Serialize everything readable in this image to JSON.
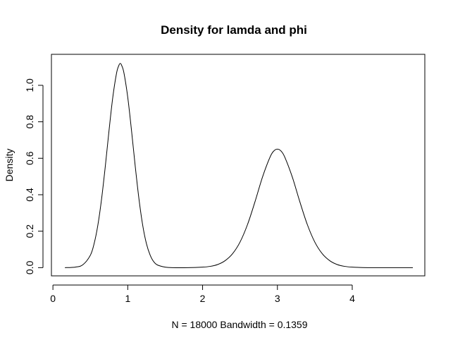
{
  "chart_data": {
    "type": "line",
    "title": "Density for lamda and phi",
    "xlabel": "N = 18000   Bandwidth = 0.1359",
    "ylabel": "Density",
    "xlim": [
      -0.02,
      4.97
    ],
    "ylim": [
      -0.045,
      1.17
    ],
    "xticks": [
      0,
      1,
      2,
      3,
      4
    ],
    "yticks": [
      0.0,
      0.2,
      0.4,
      0.6,
      0.8,
      1.0
    ],
    "ytick_labels": [
      "0.0",
      "0.2",
      "0.4",
      "0.6",
      "0.8",
      "1.0"
    ],
    "grid": false,
    "legend": "none",
    "series": [
      {
        "x": [
          0.16,
          0.3,
          0.4,
          0.5,
          0.55,
          0.6,
          0.65,
          0.7,
          0.75,
          0.8,
          0.85,
          0.88,
          0.9,
          0.92,
          0.95,
          1.0,
          1.05,
          1.1,
          1.15,
          1.2,
          1.25,
          1.3,
          1.35,
          1.4,
          1.5,
          1.6,
          1.8,
          2.0,
          2.1,
          2.2,
          2.3,
          2.4,
          2.5,
          2.6,
          2.7,
          2.8,
          2.9,
          2.95,
          3.0,
          3.05,
          3.1,
          3.2,
          3.3,
          3.4,
          3.5,
          3.6,
          3.7,
          3.8,
          3.9,
          4.0,
          4.2,
          4.5,
          4.81
        ],
        "y": [
          0.0,
          0.003,
          0.016,
          0.068,
          0.131,
          0.232,
          0.376,
          0.556,
          0.753,
          0.934,
          1.066,
          1.108,
          1.12,
          1.108,
          1.066,
          0.934,
          0.753,
          0.556,
          0.376,
          0.232,
          0.131,
          0.068,
          0.031,
          0.014,
          0.003,
          0.0,
          0.0,
          0.003,
          0.007,
          0.017,
          0.038,
          0.076,
          0.14,
          0.236,
          0.361,
          0.496,
          0.605,
          0.639,
          0.65,
          0.639,
          0.605,
          0.496,
          0.361,
          0.236,
          0.14,
          0.076,
          0.038,
          0.017,
          0.007,
          0.003,
          0.0,
          0.0,
          0.0
        ],
        "color": "#000000"
      }
    ]
  }
}
